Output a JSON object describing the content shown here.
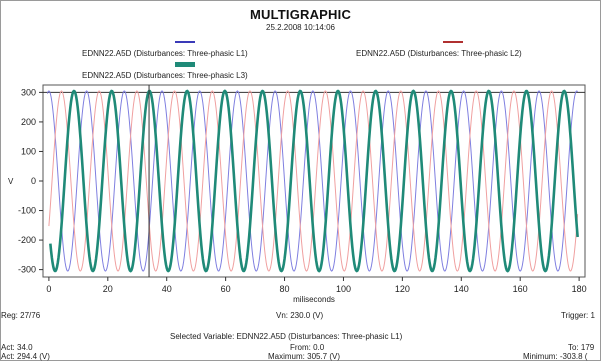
{
  "header": {
    "title": "MULTIGRAPHIC",
    "timestamp": "25.2.2008 10:14:06"
  },
  "legend": [
    {
      "label": "EDNN22.A5D (Disturbances: Three-phasic L1)",
      "color": "#3a3ab8"
    },
    {
      "label": "EDNN22.A5D (Disturbances: Three-phasic L2)",
      "color": "#b03030"
    },
    {
      "label": "EDNN22.A5D (Disturbances: Three-phasic L3)",
      "color": "#1f8a78"
    }
  ],
  "chart_data": {
    "type": "line",
    "title": "MULTIGRAPHIC",
    "xlabel": "miliseconds",
    "ylabel": "V",
    "xlim": [
      -2,
      182
    ],
    "ylim": [
      -325,
      325
    ],
    "x_ticks": [
      0,
      20,
      40,
      60,
      80,
      100,
      120,
      140,
      160,
      180
    ],
    "y_ticks": [
      300,
      200,
      100,
      0,
      -100,
      -200,
      -300
    ],
    "waveform": {
      "amplitude": 305,
      "period_ms": 12.8
    },
    "series": [
      {
        "name": "EDNN22.A5D (Disturbances: Three-phasic L1)",
        "phase_deg": 0,
        "color": "#7f7fe0",
        "x_start": -0.5,
        "x_end": 179.5
      },
      {
        "name": "EDNN22.A5D (Disturbances: Three-phasic L2)",
        "phase_deg": 120,
        "color": "#f0a0a0",
        "x_start": 0,
        "x_end": 179.5
      },
      {
        "name": "EDNN22.A5D (Disturbances: Three-phasic L3)",
        "phase_deg": 240,
        "color": "#1f8a78",
        "x_start": 0.5,
        "x_end": 179.5
      }
    ],
    "highlight_series": "EDNN22.A5D (Disturbances: Three-phasic L3)",
    "cursor_x": 34,
    "reference_y": 300,
    "grid": false
  },
  "status": {
    "reg": "Reg: 27/76",
    "vn": "Vn: 230.0 (V)",
    "trigger": "Trigger: 1",
    "selected_variable": "Selected Variable: EDNN22.A5D (Disturbances: Three-phasic L1)",
    "act": "Act: 34.0",
    "act_value": "Act: 294.4 (V)",
    "from": "From: 0.0",
    "to": "To: 179",
    "maximum": "Maximum: 305.7 (V)",
    "minimum": "Minimum: -303.8 ("
  }
}
